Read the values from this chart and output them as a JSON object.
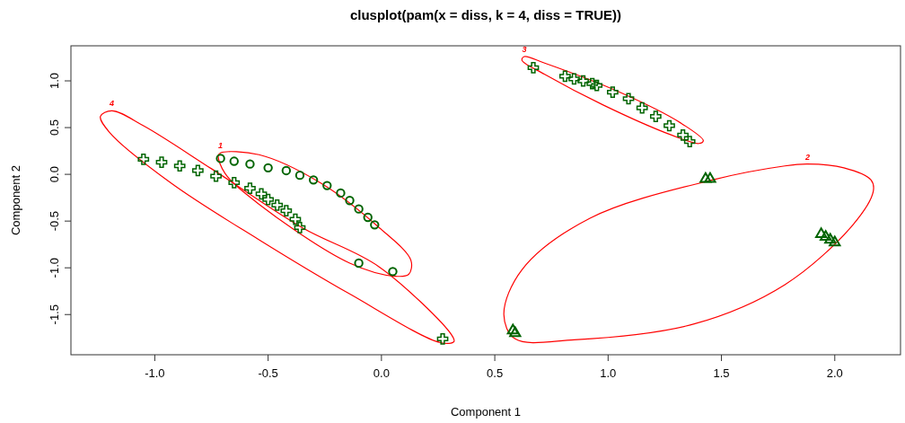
{
  "chart_data": {
    "type": "scatter",
    "title": "clusplot(pam(x = diss, k = 4, diss = TRUE))",
    "xlabel": "Component 1",
    "ylabel": "Component 2",
    "xlim": [
      -1.37,
      2.29
    ],
    "ylim": [
      -1.93,
      1.375
    ],
    "xticks": [
      {
        "value": -1,
        "label": "-1.0"
      },
      {
        "value": -0.5,
        "label": "-0.5"
      },
      {
        "value": 0,
        "label": "0.0"
      },
      {
        "value": 0.5,
        "label": "0.5"
      },
      {
        "value": 1,
        "label": "1.0"
      },
      {
        "value": 1.5,
        "label": "1.5"
      },
      {
        "value": 2,
        "label": "2.0"
      }
    ],
    "yticks": [
      {
        "value": -1.5,
        "label": "-1.5"
      },
      {
        "value": -1,
        "label": "-1.0"
      },
      {
        "value": -0.5,
        "label": "-0.5"
      },
      {
        "value": 0,
        "label": "0.0"
      },
      {
        "value": 0.5,
        "label": "0.5"
      },
      {
        "value": 1,
        "label": "1.0"
      }
    ],
    "series": [
      {
        "marker": "circle",
        "color": "#006400",
        "x": [
          -0.71,
          -0.65,
          -0.58,
          -0.5,
          -0.42,
          -0.36,
          -0.3,
          -0.24,
          -0.18,
          -0.14,
          -0.1,
          -0.06,
          -0.03,
          0.05,
          -0.1
        ],
        "values": [
          0.17,
          0.14,
          0.11,
          0.07,
          0.04,
          -0.01,
          -0.06,
          -0.12,
          -0.2,
          -0.28,
          -0.37,
          -0.46,
          -0.54,
          -1.04,
          -0.95
        ]
      },
      {
        "marker": "triangle",
        "color": "#006400",
        "x": [
          1.43,
          1.45,
          0.58,
          0.59,
          1.94,
          1.96,
          1.98,
          2.0
        ],
        "values": [
          -0.05,
          -0.05,
          -1.67,
          -1.7,
          -0.64,
          -0.67,
          -0.7,
          -0.73
        ]
      },
      {
        "marker": "cross",
        "color": "#006400",
        "x": [
          0.67,
          0.81,
          0.85,
          0.89,
          0.93,
          0.95,
          1.02,
          1.09,
          1.15,
          1.21,
          1.27,
          1.33,
          1.36
        ],
        "values": [
          1.14,
          1.05,
          1.02,
          1.0,
          0.97,
          0.95,
          0.88,
          0.81,
          0.71,
          0.62,
          0.52,
          0.42,
          0.35
        ]
      },
      {
        "marker": "cross",
        "color": "#006400",
        "x": [
          -1.05,
          -0.97,
          -0.89,
          -0.81,
          -0.73,
          -0.65,
          -0.58,
          -0.53,
          -0.5,
          -0.46,
          -0.42,
          -0.38,
          -0.36,
          0.27
        ],
        "values": [
          0.16,
          0.13,
          0.09,
          0.04,
          -0.02,
          -0.09,
          -0.15,
          -0.21,
          -0.27,
          -0.33,
          -0.39,
          -0.48,
          -0.57,
          -1.76
        ]
      }
    ],
    "annotations": [
      "4",
      "1",
      "3",
      "2"
    ]
  }
}
